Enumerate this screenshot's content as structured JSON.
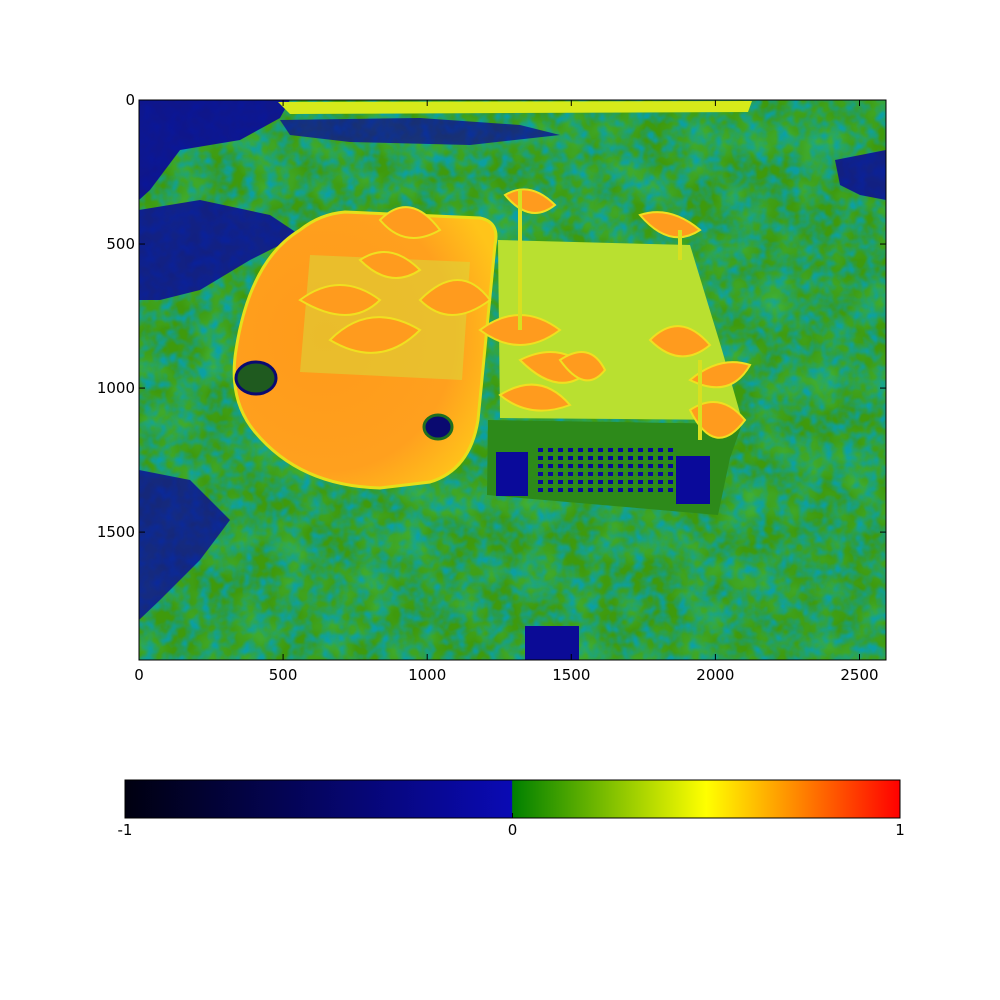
{
  "chart_data": [
    {
      "type": "heatmap",
      "title": "",
      "xlabel": "",
      "ylabel": "",
      "xlim": [
        0,
        2592
      ],
      "ylim": [
        1944,
        0
      ],
      "x_ticks": [
        0,
        500,
        1000,
        1500,
        2000,
        2500
      ],
      "x_tick_labels": [
        "0",
        "500",
        "1000",
        "1500",
        "2000",
        "2500"
      ],
      "y_ticks": [
        0,
        500,
        1000,
        1500
      ],
      "y_tick_labels": [
        "0",
        "500",
        "1000",
        "1500"
      ],
      "colormap": {
        "stops": [
          {
            "value": -1,
            "color": "#000010"
          },
          {
            "value": -0.001,
            "color": "#0a0ab4"
          },
          {
            "value": 0,
            "color": "#008000"
          },
          {
            "value": 0.5,
            "color": "#ffff00"
          },
          {
            "value": 1,
            "color": "#ff0000"
          }
        ]
      },
      "grid": false
    },
    {
      "type": "colorbar",
      "orientation": "horizontal",
      "range": [
        -1,
        1
      ],
      "ticks": [
        -1,
        0,
        1
      ],
      "tick_labels": [
        "-1",
        "0",
        "1"
      ]
    }
  ]
}
